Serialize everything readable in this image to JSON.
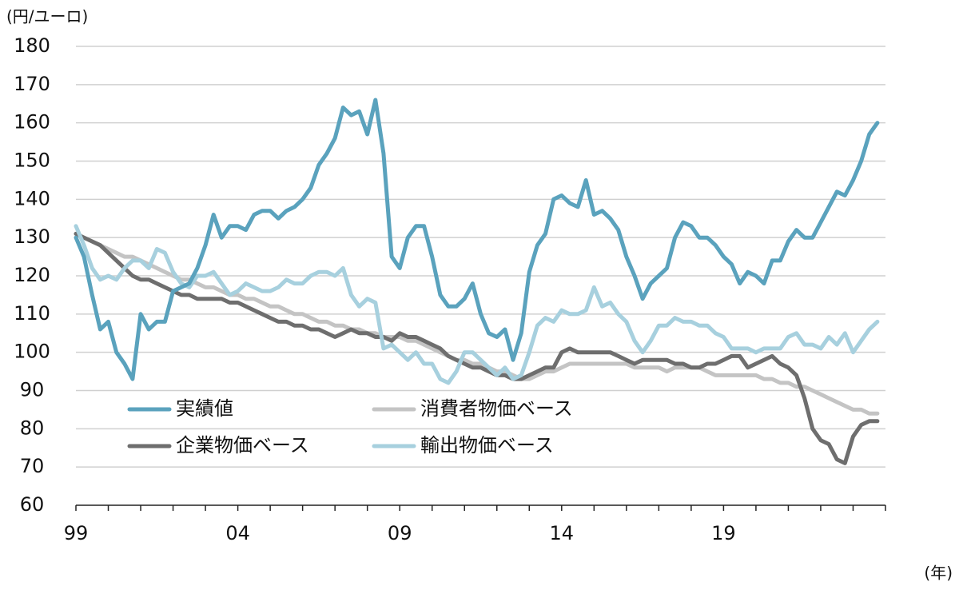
{
  "chart_data": {
    "type": "line",
    "y_label": "(円/ユーロ)",
    "x_label": "(年)",
    "x": [
      1999,
      1999.25,
      1999.5,
      1999.75,
      2000,
      2000.25,
      2000.5,
      2000.75,
      2001,
      2001.25,
      2001.5,
      2001.75,
      2002,
      2002.25,
      2002.5,
      2002.75,
      2003,
      2003.25,
      2003.5,
      2003.75,
      2004,
      2004.25,
      2004.5,
      2004.75,
      2005,
      2005.25,
      2005.5,
      2005.75,
      2006,
      2006.25,
      2006.5,
      2006.75,
      2007,
      2007.25,
      2007.5,
      2007.75,
      2008,
      2008.25,
      2008.5,
      2008.75,
      2009,
      2009.25,
      2009.5,
      2009.75,
      2010,
      2010.25,
      2010.5,
      2010.75,
      2011,
      2011.25,
      2011.5,
      2011.75,
      2012,
      2012.25,
      2012.5,
      2012.75,
      2013,
      2013.25,
      2013.5,
      2013.75,
      2014,
      2014.25,
      2014.5,
      2014.75,
      2015,
      2015.25,
      2015.5,
      2015.75,
      2016,
      2016.25,
      2016.5,
      2016.75,
      2017,
      2017.25,
      2017.5,
      2017.75,
      2018,
      2018.25,
      2018.5,
      2018.75,
      2019,
      2019.25,
      2019.5,
      2019.75,
      2020,
      2020.25,
      2020.5,
      2020.75,
      2021,
      2021.25,
      2021.5,
      2021.75,
      2022,
      2022.25,
      2022.5,
      2022.75,
      2023,
      2023.25,
      2023.5,
      2023.75
    ],
    "series": [
      {
        "name": "実績値",
        "color": "#5aa2bd",
        "values": [
          130,
          125,
          115,
          106,
          108,
          100,
          97,
          93,
          110,
          106,
          108,
          108,
          116,
          117,
          118,
          122,
          128,
          136,
          130,
          133,
          133,
          132,
          136,
          137,
          137,
          135,
          137,
          138,
          140,
          143,
          149,
          152,
          156,
          164,
          162,
          163,
          157,
          166,
          152,
          125,
          122,
          130,
          133,
          133,
          125,
          115,
          112,
          112,
          114,
          118,
          110,
          105,
          104,
          106,
          98,
          105,
          121,
          128,
          131,
          140,
          141,
          139,
          138,
          145,
          136,
          137,
          135,
          132,
          125,
          120,
          114,
          118,
          120,
          122,
          130,
          134,
          133,
          130,
          130,
          128,
          125,
          123,
          118,
          121,
          120,
          118,
          124,
          124,
          129,
          132,
          130,
          130,
          134,
          138,
          142,
          141,
          145,
          150,
          157,
          160
        ]
      },
      {
        "name": "消費者物価ベース",
        "color": "#c4c4c4",
        "values": [
          131,
          130,
          129,
          128,
          127,
          126,
          125,
          125,
          124,
          123,
          122,
          121,
          120,
          119,
          119,
          118,
          117,
          117,
          116,
          115,
          115,
          114,
          114,
          113,
          112,
          112,
          111,
          110,
          110,
          109,
          108,
          108,
          107,
          107,
          106,
          106,
          105,
          105,
          104,
          104,
          104,
          103,
          103,
          102,
          101,
          100,
          99,
          98,
          98,
          97,
          97,
          96,
          95,
          95,
          94,
          93,
          93,
          94,
          95,
          95,
          96,
          97,
          97,
          97,
          97,
          97,
          97,
          97,
          97,
          96,
          96,
          96,
          96,
          95,
          96,
          96,
          96,
          96,
          95,
          94,
          94,
          94,
          94,
          94,
          94,
          93,
          93,
          92,
          92,
          91,
          91,
          90,
          89,
          88,
          87,
          86,
          85,
          85,
          84,
          84
        ]
      },
      {
        "name": "企業物価ベース",
        "color": "#6e6e6e",
        "values": [
          131,
          130,
          129,
          128,
          126,
          124,
          122,
          120,
          119,
          119,
          118,
          117,
          116,
          115,
          115,
          114,
          114,
          114,
          114,
          113,
          113,
          112,
          111,
          110,
          109,
          108,
          108,
          107,
          107,
          106,
          106,
          105,
          104,
          105,
          106,
          105,
          105,
          104,
          104,
          103,
          105,
          104,
          104,
          103,
          102,
          101,
          99,
          98,
          97,
          96,
          96,
          95,
          94,
          94,
          93,
          93,
          94,
          95,
          96,
          96,
          100,
          101,
          100,
          100,
          100,
          100,
          100,
          99,
          98,
          97,
          98,
          98,
          98,
          98,
          97,
          97,
          96,
          96,
          97,
          97,
          98,
          99,
          99,
          96,
          97,
          98,
          99,
          97,
          96,
          94,
          88,
          80,
          77,
          76,
          72,
          71,
          78,
          81,
          82,
          82
        ]
      },
      {
        "name": "輸出物価ベース",
        "color": "#a7d0de",
        "values": [
          133,
          128,
          122,
          119,
          120,
          119,
          122,
          124,
          124,
          122,
          127,
          126,
          121,
          118,
          117,
          120,
          120,
          121,
          118,
          115,
          116,
          118,
          117,
          116,
          116,
          117,
          119,
          118,
          118,
          120,
          121,
          121,
          120,
          122,
          115,
          112,
          114,
          113,
          101,
          102,
          100,
          98,
          100,
          97,
          97,
          93,
          92,
          95,
          100,
          100,
          98,
          96,
          94,
          96,
          93,
          94,
          100,
          107,
          109,
          108,
          111,
          110,
          110,
          111,
          117,
          112,
          113,
          110,
          108,
          103,
          100,
          103,
          107,
          107,
          109,
          108,
          108,
          107,
          107,
          105,
          104,
          101,
          101,
          101,
          100,
          101,
          101,
          101,
          104,
          105,
          102,
          102,
          101,
          104,
          102,
          105,
          100,
          103,
          106,
          108
        ]
      }
    ],
    "xlim": [
      1999,
      2024
    ],
    "xticks": [
      {
        "value": 1999,
        "label": "99"
      },
      {
        "value": 2004,
        "label": "04"
      },
      {
        "value": 2009,
        "label": "09"
      },
      {
        "value": 2014,
        "label": "14"
      },
      {
        "value": 2019,
        "label": "19"
      }
    ],
    "xminorticks": [
      1999,
      2000,
      2001,
      2002,
      2003,
      2004,
      2005,
      2006,
      2007,
      2008,
      2009,
      2010,
      2011,
      2012,
      2013,
      2014,
      2015,
      2016,
      2017,
      2018,
      2019,
      2020,
      2021,
      2022,
      2023,
      2024
    ],
    "ylim": [
      60,
      180
    ],
    "yticks": [
      60,
      70,
      80,
      90,
      100,
      110,
      120,
      130,
      140,
      150,
      160,
      170,
      180
    ],
    "grid": true
  }
}
